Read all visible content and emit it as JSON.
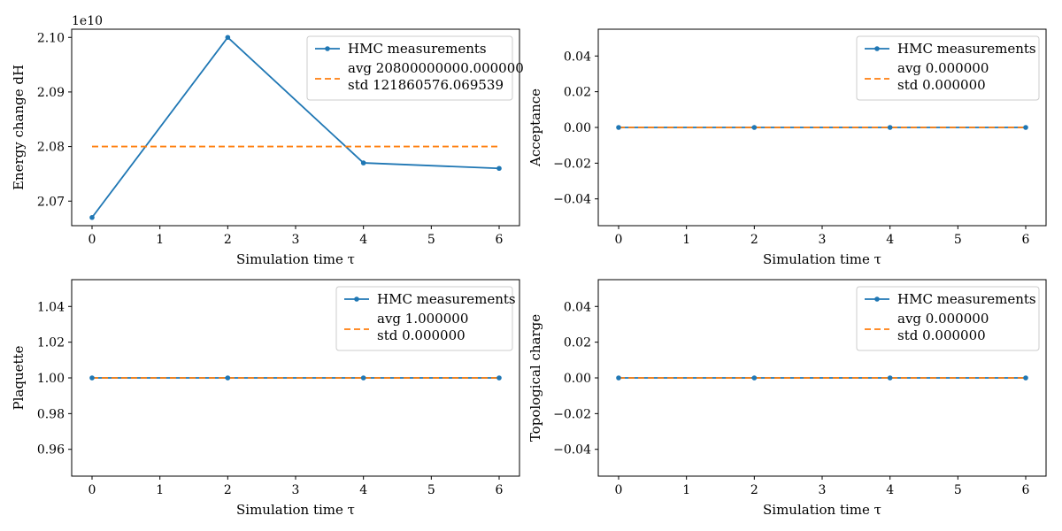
{
  "colors": {
    "series": "#1f77b4",
    "average": "#ff7f0e"
  },
  "chart_data": [
    {
      "type": "line",
      "title": "",
      "xlabel": "Simulation time τ",
      "ylabel": "Energy change dH",
      "y_offset_label": "1e10",
      "xlim": [
        -0.3,
        6.3
      ],
      "ylim": [
        20655000000.0,
        21015000000.0
      ],
      "xticks": [
        0,
        1,
        2,
        3,
        4,
        5,
        6
      ],
      "yticks": [
        20700000000.0,
        20800000000.0,
        20900000000.0,
        21000000000.0
      ],
      "ytick_labels": [
        "2.07",
        "2.08",
        "2.09",
        "2.10"
      ],
      "series": [
        {
          "name": "HMC measurements",
          "x": [
            0,
            2,
            4,
            6
          ],
          "y": [
            20670000000.0,
            21000000000.0,
            20770000000.0,
            20760000000.0
          ]
        },
        {
          "name": "avg 20800000000.000000\nstd 121860576.069539",
          "x": [
            0,
            6
          ],
          "y": [
            20800000000.0,
            20800000000.0
          ],
          "style": "dashed"
        }
      ],
      "legend": [
        "HMC measurements",
        "avg 20800000000.000000",
        "std 121860576.069539"
      ],
      "legend_position": "top-right",
      "grid": false
    },
    {
      "type": "line",
      "title": "",
      "xlabel": "Simulation time τ",
      "ylabel": "Acceptance",
      "xlim": [
        -0.3,
        6.3
      ],
      "ylim": [
        -0.055,
        0.055
      ],
      "xticks": [
        0,
        1,
        2,
        3,
        4,
        5,
        6
      ],
      "yticks": [
        -0.04,
        -0.02,
        0.0,
        0.02,
        0.04
      ],
      "ytick_labels": [
        "−0.04",
        "−0.02",
        "0.00",
        "0.02",
        "0.04"
      ],
      "series": [
        {
          "name": "HMC measurements",
          "x": [
            0,
            2,
            4,
            6
          ],
          "y": [
            0,
            0,
            0,
            0
          ]
        },
        {
          "name": "avg 0.000000\nstd 0.000000",
          "x": [
            0,
            6
          ],
          "y": [
            0,
            0
          ],
          "style": "dashed"
        }
      ],
      "legend": [
        "HMC measurements",
        "avg 0.000000",
        "std 0.000000"
      ],
      "legend_position": "top-right",
      "grid": false
    },
    {
      "type": "line",
      "title": "",
      "xlabel": "Simulation time τ",
      "ylabel": "Plaquette",
      "xlim": [
        -0.3,
        6.3
      ],
      "ylim": [
        0.945,
        1.055
      ],
      "xticks": [
        0,
        1,
        2,
        3,
        4,
        5,
        6
      ],
      "yticks": [
        0.96,
        0.98,
        1.0,
        1.02,
        1.04
      ],
      "ytick_labels": [
        "0.96",
        "0.98",
        "1.00",
        "1.02",
        "1.04"
      ],
      "series": [
        {
          "name": "HMC measurements",
          "x": [
            0,
            2,
            4,
            6
          ],
          "y": [
            1,
            1,
            1,
            1
          ]
        },
        {
          "name": "avg 1.000000\nstd 0.000000",
          "x": [
            0,
            6
          ],
          "y": [
            1,
            1
          ],
          "style": "dashed"
        }
      ],
      "legend": [
        "HMC measurements",
        "avg 1.000000",
        "std 0.000000"
      ],
      "legend_position": "top-right",
      "grid": false
    },
    {
      "type": "line",
      "title": "",
      "xlabel": "Simulation time τ",
      "ylabel": "Topological charge",
      "xlim": [
        -0.3,
        6.3
      ],
      "ylim": [
        -0.055,
        0.055
      ],
      "xticks": [
        0,
        1,
        2,
        3,
        4,
        5,
        6
      ],
      "yticks": [
        -0.04,
        -0.02,
        0.0,
        0.02,
        0.04
      ],
      "ytick_labels": [
        "−0.04",
        "−0.02",
        "0.00",
        "0.02",
        "0.04"
      ],
      "series": [
        {
          "name": "HMC measurements",
          "x": [
            0,
            2,
            4,
            6
          ],
          "y": [
            0,
            0,
            0,
            0
          ]
        },
        {
          "name": "avg 0.000000\nstd 0.000000",
          "x": [
            0,
            6
          ],
          "y": [
            0,
            0
          ],
          "style": "dashed"
        }
      ],
      "legend": [
        "HMC measurements",
        "avg 0.000000",
        "std 0.000000"
      ],
      "legend_position": "top-right",
      "grid": false
    }
  ]
}
